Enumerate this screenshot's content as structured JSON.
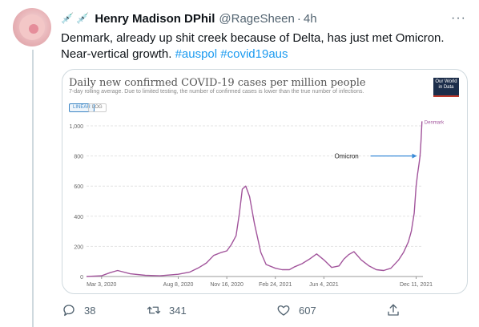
{
  "tweet": {
    "display_name": "Henry Madison DPhil",
    "handle": "@RageSheen",
    "time": "4h",
    "separator": "·",
    "text_line1": "Denmark, already up shit creek because of Delta, has just met Omicron.",
    "text_line2_plain": "Near-vertical growth.",
    "hashtag1": "#auspol",
    "hashtag2": "#covid19aus"
  },
  "actions": {
    "replies": "38",
    "retweets": "341",
    "likes": "607"
  },
  "card": {
    "owid_logo": "Our World in Data",
    "toggle_linear": "LINEAR",
    "toggle_log": "LOG"
  },
  "chart_data": {
    "type": "line",
    "title": "Daily new confirmed COVID-19 cases per million people",
    "subtitle": "7-day rolling average. Due to limited testing, the number of confirmed cases is lower than the true number of infections.",
    "xlabel": "",
    "ylabel": "",
    "ylim": [
      0,
      1000
    ],
    "y_ticks": [
      0,
      200,
      400,
      600,
      800,
      1000
    ],
    "y_tick_labels": [
      "0",
      "200",
      "400",
      "600",
      "800",
      "1,000"
    ],
    "x_ticks": [
      "2020-03-03",
      "2020-08-08",
      "2020-11-16",
      "2021-02-24",
      "2021-06-04",
      "2021-12-11"
    ],
    "x_tick_labels": [
      "Mar 3, 2020",
      "Aug 8, 2020",
      "Nov 16, 2020",
      "Feb 24, 2021",
      "Jun 4, 2021",
      "Dec 11, 2021"
    ],
    "xlim": [
      "2020-02-01",
      "2021-12-25"
    ],
    "grid": true,
    "color": "#a2559c",
    "series": [
      {
        "name": "Denmark",
        "x": [
          "2020-02-01",
          "2020-03-03",
          "2020-03-20",
          "2020-04-05",
          "2020-05-01",
          "2020-06-01",
          "2020-07-01",
          "2020-08-08",
          "2020-09-01",
          "2020-09-20",
          "2020-10-05",
          "2020-10-20",
          "2020-11-05",
          "2020-11-16",
          "2020-11-25",
          "2020-12-05",
          "2020-12-12",
          "2020-12-18",
          "2020-12-25",
          "2021-01-02",
          "2021-01-12",
          "2021-01-25",
          "2021-02-05",
          "2021-02-24",
          "2021-03-10",
          "2021-03-25",
          "2021-04-05",
          "2021-04-20",
          "2021-05-05",
          "2021-05-20",
          "2021-06-04",
          "2021-06-20",
          "2021-07-05",
          "2021-07-15",
          "2021-07-25",
          "2021-08-05",
          "2021-08-20",
          "2021-09-05",
          "2021-09-20",
          "2021-10-05",
          "2021-10-20",
          "2021-11-05",
          "2021-11-15",
          "2021-11-25",
          "2021-12-01",
          "2021-12-07",
          "2021-12-11",
          "2021-12-14",
          "2021-12-17",
          "2021-12-19",
          "2021-12-21",
          "2021-12-23"
        ],
        "y": [
          0,
          5,
          25,
          40,
          18,
          8,
          5,
          15,
          30,
          60,
          90,
          140,
          160,
          170,
          210,
          270,
          420,
          580,
          600,
          530,
          350,
          160,
          80,
          55,
          45,
          45,
          65,
          85,
          115,
          150,
          110,
          60,
          70,
          115,
          145,
          165,
          110,
          70,
          45,
          40,
          55,
          110,
          160,
          230,
          300,
          420,
          600,
          680,
          750,
          800,
          900,
          1030
        ]
      }
    ],
    "annotations": [
      {
        "text": "Omicron",
        "x": "2021-12-16",
        "y": 800
      },
      {
        "text": "Denmark",
        "x": "2021-12-23",
        "y": 1030
      }
    ]
  },
  "colors": {
    "accent": "#1d9bf0",
    "secondary_text": "#536471",
    "series": "#a2559c",
    "annotation_arrow": "#3a8bd8"
  },
  "icons": {
    "header_emoji": "syringe-icon",
    "more": "more-options-icon",
    "reply": "reply-icon",
    "retweet": "retweet-icon",
    "like": "heart-icon",
    "share": "share-icon"
  }
}
